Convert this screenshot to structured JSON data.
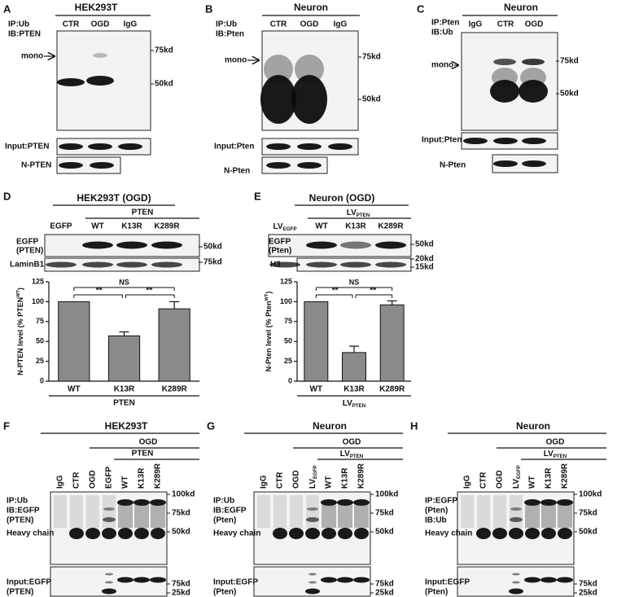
{
  "panels": {
    "A": {
      "letter": "A",
      "title": "HEK293T",
      "ip": "IP:Ub",
      "ib": "IB:PTEN",
      "lanes": [
        "CTR",
        "OGD",
        "IgG"
      ],
      "arrow": "mono",
      "markers": [
        "75kd",
        "50kd"
      ],
      "input": "Input:PTEN",
      "nuclear": "N-PTEN"
    },
    "B": {
      "letter": "B",
      "title": "Neuron",
      "ip": "IP:Ub",
      "ib": "IB:Pten",
      "lanes": [
        "CTR",
        "OGD",
        "IgG"
      ],
      "arrow": "mono",
      "markers": [
        "75kd",
        "50kd"
      ],
      "input": "Input:Pten",
      "nuclear": "N-Pten"
    },
    "C": {
      "letter": "C",
      "title": "Neuron",
      "ip": "IP:Pten",
      "ib": "IB:Ub",
      "lanes": [
        "IgG",
        "CTR",
        "OGD"
      ],
      "arrow": "mono",
      "markers": [
        "75kd",
        "50kd"
      ],
      "input": "Input:Pten",
      "nuclear": "N-Pten"
    },
    "D": {
      "letter": "D",
      "title": "HEK293T (OGD)",
      "group": "PTEN",
      "lanes": [
        "EGFP",
        "WT",
        "K13R",
        "K289R"
      ],
      "rows": [
        [
          "EGFP",
          "(PTEN)"
        ],
        [
          "LaminB1"
        ]
      ],
      "markers": [
        "50kd",
        "75kd"
      ]
    },
    "E": {
      "letter": "E",
      "title": "Neuron (OGD)",
      "group": {
        "text": "LV",
        "sub": "PTEN"
      },
      "lanes": [
        {
          "text": "LV",
          "sub": "EGFP"
        },
        "WT",
        "K13R",
        "K289R"
      ],
      "rows": [
        [
          "EGFP",
          "(Pten)"
        ],
        [
          "H3"
        ]
      ],
      "markers": [
        "50kd",
        "20kd",
        "15kd"
      ]
    },
    "F": {
      "letter": "F",
      "title": "HEK293T",
      "treatment": "OGD",
      "group": "PTEN",
      "lanes": [
        "IgG",
        "CTR",
        "OGD",
        "EGFP",
        "WT",
        "K13R",
        "K289R"
      ],
      "labels": [
        "IP:Ub",
        "IB:EGFP",
        "(PTEN)",
        "Heavy chain"
      ],
      "input": [
        "Input:EGFP",
        "(PTEN)"
      ],
      "markers": [
        "100kd",
        "75kd",
        "50kd",
        "75kd",
        "25kd"
      ]
    },
    "G": {
      "letter": "G",
      "title": "Neuron",
      "treatment": "OGD",
      "group": {
        "text": "LV",
        "sub": "PTEN"
      },
      "lanes": [
        "IgG",
        "CTR",
        "OGD",
        {
          "text": "LV",
          "sub": "EGFP"
        },
        "WT",
        "K13R",
        "K289R"
      ],
      "labels": [
        "IP:Ub",
        "IB:EGFP",
        "(Pten)",
        "Heavy chain"
      ],
      "input": [
        "Input:EGFP",
        "(Pten)"
      ],
      "markers": [
        "100kd",
        "75kd",
        "50kd",
        "75kd",
        "25kd"
      ]
    },
    "H": {
      "letter": "H",
      "title": "Neuron",
      "treatment": "OGD",
      "group": {
        "text": "LV",
        "sub": "PTEN"
      },
      "lanes": [
        "IgG",
        "CTR",
        "OGD",
        {
          "text": "LV",
          "sub": "EGFP"
        },
        "WT",
        "K13R",
        "K289R"
      ],
      "labels": [
        "IP:EGFP",
        "(Pten)",
        "IB:Ub",
        "Heavy chain"
      ],
      "input": [
        "Input:EGFP",
        "(Pten)"
      ],
      "markers": [
        "100kd",
        "75kd",
        "50kd",
        "75kd",
        "25kd"
      ]
    }
  },
  "chart_data": [
    {
      "type": "bar",
      "ylabel": {
        "text": "N-PTEN level (% PTEN",
        "sup": "WT",
        "end": ")"
      },
      "categories": [
        "WT",
        "K13R",
        "K289R"
      ],
      "values": [
        100,
        57,
        91
      ],
      "errors": [
        null,
        5,
        9
      ],
      "xlabel": "PTEN",
      "ylim": [
        0,
        125
      ],
      "yticks": [
        0,
        25,
        50,
        75,
        100,
        125
      ],
      "color": "#8a8a8a",
      "annotations": [
        "**",
        "NS",
        "**"
      ]
    },
    {
      "type": "bar",
      "ylabel": {
        "text": "N-Pten level (% Pten",
        "sup": "WT",
        "end": ")"
      },
      "categories": [
        "WT",
        "K13R",
        "K289R"
      ],
      "values": [
        100,
        36,
        96
      ],
      "errors": [
        null,
        8,
        5
      ],
      "xlabel": {
        "text": "LV",
        "sub": "PTEN"
      },
      "ylim": [
        0,
        125
      ],
      "yticks": [
        0,
        25,
        50,
        75,
        100,
        125
      ],
      "color": "#8a8a8a",
      "annotations": [
        "**",
        "NS",
        "**"
      ]
    }
  ]
}
